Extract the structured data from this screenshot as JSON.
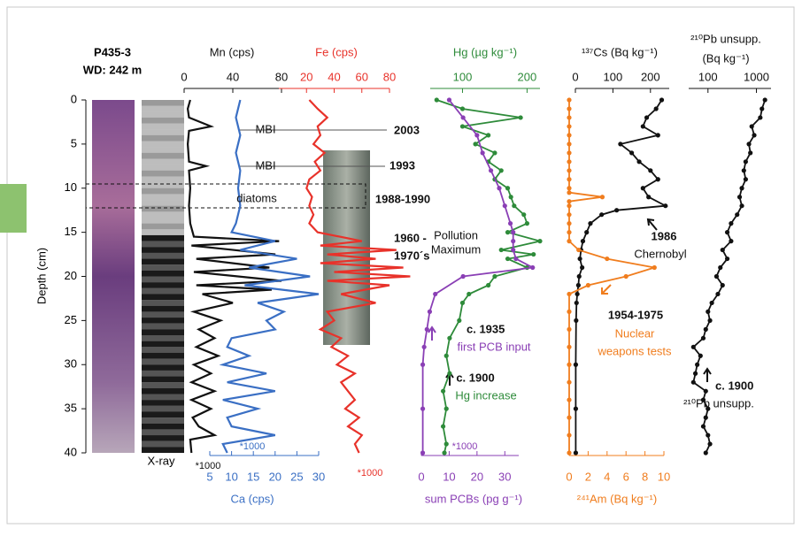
{
  "chart_data": {
    "type": "depth-profile",
    "title": "P435-3",
    "subtitle": "WD: 242 m",
    "core_label": "X-ray",
    "ylabel": "Depth (cm)",
    "ylim": [
      0,
      40
    ],
    "yticks": [
      0,
      5,
      10,
      15,
      20,
      25,
      30,
      35,
      40
    ],
    "profiles": [
      {
        "label": "Mn (cps)",
        "color": "#111111",
        "position": "top",
        "scale": "linear",
        "note": "*1000",
        "markers": false,
        "xlim": [
          0,
          80
        ],
        "xticks": [
          0,
          40,
          80
        ],
        "depth": [
          0,
          1,
          2,
          3,
          3.5,
          5,
          7,
          7.5,
          8,
          10,
          12,
          14,
          15.5,
          16,
          16.5,
          17.5,
          18,
          19,
          19.5,
          20.5,
          21,
          21.5,
          22,
          23,
          24,
          25,
          26,
          27,
          28,
          29,
          30,
          31,
          32,
          33,
          34,
          35,
          36,
          37,
          38,
          38.5,
          40
        ],
        "values": [
          5,
          3,
          4,
          22,
          4,
          3,
          4,
          18,
          4,
          5,
          4,
          5,
          8,
          78,
          6,
          75,
          10,
          70,
          8,
          80,
          10,
          72,
          15,
          40,
          8,
          30,
          12,
          25,
          10,
          28,
          8,
          22,
          6,
          25,
          6,
          22,
          7,
          12,
          25,
          5,
          6
        ]
      },
      {
        "label": "Ca (cps)",
        "color": "#3a6fc4",
        "position": "bottom",
        "scale": "linear",
        "note": "*1000",
        "markers": false,
        "xlim": [
          5,
          30
        ],
        "xticks": [
          5,
          10,
          15,
          20,
          25,
          30
        ],
        "depth": [
          0,
          2,
          4,
          6,
          8,
          10,
          12,
          14,
          15,
          16,
          17,
          18,
          19,
          20,
          21,
          22,
          23,
          24,
          25,
          26,
          27,
          28,
          29,
          30,
          31,
          32,
          33,
          34,
          35,
          36,
          37,
          38,
          39,
          40
        ],
        "values": [
          12,
          11,
          12,
          11,
          12,
          11.5,
          12,
          11,
          10,
          20,
          12,
          25,
          14,
          28,
          13,
          30,
          16,
          22,
          18,
          20,
          10,
          9,
          14,
          8,
          18,
          9,
          20,
          8,
          16,
          9,
          10,
          20,
          8,
          9
        ]
      },
      {
        "label": "Fe (cps)",
        "color": "#e8322a",
        "position": "top",
        "scale": "linear",
        "note": "*1000",
        "markers": false,
        "xlim": [
          0,
          80
        ],
        "xticks": [
          20,
          40,
          60,
          80
        ],
        "depth": [
          0,
          1,
          2,
          3,
          4,
          5,
          6,
          7,
          8,
          9,
          10,
          11,
          12,
          13,
          14,
          15,
          16,
          16.5,
          17,
          17.5,
          18,
          18.5,
          19,
          19.5,
          20,
          20.5,
          21,
          22,
          23,
          24,
          25,
          26,
          27,
          28,
          29,
          30,
          31,
          32,
          33,
          34,
          35,
          36,
          37,
          38,
          39,
          40
        ],
        "values": [
          22,
          28,
          35,
          28,
          30,
          25,
          33,
          26,
          30,
          22,
          20,
          24,
          22,
          25,
          22,
          28,
          60,
          30,
          85,
          35,
          70,
          30,
          90,
          40,
          95,
          35,
          80,
          45,
          70,
          35,
          40,
          30,
          45,
          38,
          50,
          42,
          55,
          45,
          50,
          55,
          48,
          58,
          50,
          60,
          55,
          58
        ]
      },
      {
        "label": "Hg (µg kg⁻¹)",
        "color": "#2e8b3a",
        "position": "top",
        "scale": "linear",
        "markers": true,
        "xlim": [
          50,
          220
        ],
        "xticks": [
          100,
          200
        ],
        "depth": [
          0,
          1,
          2,
          3,
          4,
          5,
          6,
          7,
          8,
          9,
          10,
          11,
          12,
          13,
          14,
          15,
          16,
          17,
          17.5,
          18,
          19,
          20,
          21,
          22,
          23,
          25,
          27,
          29,
          31,
          33,
          35,
          37,
          39,
          40
        ],
        "values": [
          60,
          100,
          190,
          100,
          140,
          120,
          150,
          140,
          160,
          150,
          170,
          175,
          180,
          195,
          200,
          170,
          220,
          160,
          210,
          170,
          200,
          150,
          140,
          110,
          100,
          95,
          80,
          75,
          80,
          70,
          75,
          70,
          75,
          72
        ]
      },
      {
        "label": "sum PCBs (pg g⁻¹)",
        "color": "#8a3fb5",
        "position": "bottom",
        "scale": "linear",
        "note": "*1000",
        "markers": true,
        "xlim": [
          0,
          35
        ],
        "xticks": [
          0,
          10,
          20,
          30
        ],
        "depth": [
          0,
          2,
          4,
          6,
          8,
          10,
          12,
          14,
          15,
          16,
          17,
          18,
          19,
          20,
          22,
          24,
          26,
          28,
          30,
          35,
          40
        ],
        "values": [
          10,
          15,
          20,
          22,
          25,
          28,
          30,
          32,
          33,
          33,
          33,
          34,
          40,
          15,
          5,
          3,
          2,
          1,
          0.5,
          0.5,
          0.5
        ]
      },
      {
        "label": "¹³⁷Cs (Bq kg⁻¹)",
        "color": "#111111",
        "position": "top",
        "scale": "linear",
        "markers": true,
        "xlim": [
          0,
          250
        ],
        "xticks": [
          0,
          100,
          200
        ],
        "depth": [
          0,
          1,
          2,
          3,
          4,
          5,
          6,
          7,
          8,
          9,
          10,
          11,
          12,
          12.5,
          13,
          14,
          15,
          16,
          17,
          18,
          19,
          20,
          21,
          22,
          23,
          25,
          30,
          35,
          40
        ],
        "values": [
          230,
          215,
          190,
          180,
          220,
          120,
          150,
          170,
          200,
          220,
          180,
          195,
          240,
          110,
          70,
          40,
          30,
          20,
          15,
          12,
          18,
          10,
          8,
          5,
          3,
          2,
          1,
          1,
          1
        ]
      },
      {
        "label": "²⁴¹Am (Bq kg⁻¹)",
        "color": "#f07d1e",
        "position": "bottom",
        "scale": "linear",
        "markers": true,
        "xlim": [
          0,
          10
        ],
        "xticks": [
          0,
          2,
          4,
          6,
          8,
          10
        ],
        "depth": [
          0,
          1,
          2,
          3,
          4,
          5,
          6,
          7,
          8,
          9,
          10,
          10.5,
          11,
          11.5,
          12,
          13,
          14,
          15,
          16,
          17,
          18,
          19,
          20,
          21,
          22,
          24,
          26,
          28,
          30,
          32,
          34,
          36,
          38,
          40
        ],
        "values": [
          0,
          0,
          0,
          0,
          0,
          0,
          0,
          0,
          0,
          0,
          0,
          0,
          3.5,
          0,
          0,
          0,
          0,
          0,
          0,
          1,
          4,
          9,
          6,
          2,
          0,
          0,
          0,
          0,
          0,
          0,
          0,
          0,
          0,
          0
        ]
      },
      {
        "label": "²¹⁰Pb unsupp.",
        "label2": "(Bq kg⁻¹)",
        "color": "#111111",
        "position": "top",
        "scale": "log",
        "markers": true,
        "xlim": [
          40,
          2000
        ],
        "xticks": [
          100,
          1000
        ],
        "depth": [
          0,
          1,
          2,
          3,
          4,
          5,
          6,
          7,
          8,
          9,
          10,
          11,
          12,
          13,
          14,
          15,
          16,
          17,
          18,
          19,
          20,
          21,
          22,
          23,
          24,
          25,
          26,
          27,
          28,
          29,
          30,
          31,
          32,
          33,
          34,
          35,
          36,
          37,
          38,
          39,
          40
        ],
        "values": [
          1500,
          1300,
          1200,
          800,
          900,
          700,
          750,
          600,
          550,
          600,
          500,
          450,
          500,
          400,
          300,
          250,
          300,
          200,
          250,
          180,
          150,
          200,
          160,
          120,
          100,
          110,
          90,
          80,
          50,
          70,
          60,
          55,
          50,
          90,
          80,
          100,
          90,
          80,
          100,
          110,
          90
        ]
      }
    ],
    "annotations": [
      {
        "text": "MBI",
        "color": "#111111"
      },
      {
        "text": "MBI",
        "color": "#111111"
      },
      {
        "text": "2003",
        "color": "#111111"
      },
      {
        "text": "1993",
        "color": "#111111"
      },
      {
        "text": "diatoms",
        "color": "#111111"
      },
      {
        "text": "1988-1990",
        "color": "#111111"
      },
      {
        "text": "1960 -",
        "color": "#111111"
      },
      {
        "text": "1970´s",
        "color": "#111111"
      },
      {
        "text": "Pollution",
        "color": "#111111"
      },
      {
        "text": "Maximum",
        "color": "#111111"
      },
      {
        "text": "c. 1935",
        "color": "#111111"
      },
      {
        "text": "first PCB input",
        "color": "#8a3fb5"
      },
      {
        "text": "c. 1900",
        "color": "#111111"
      },
      {
        "text": "Hg increase",
        "color": "#2e8b3a"
      },
      {
        "text": "1986",
        "color": "#111111"
      },
      {
        "text": "Chernobyl",
        "color": "#111111"
      },
      {
        "text": "1954-1975",
        "color": "#111111"
      },
      {
        "text": "Nuclear",
        "color": "#f07d1e"
      },
      {
        "text": "weapons tests",
        "color": "#f07d1e"
      },
      {
        "text": "c. 1900",
        "color": "#111111"
      },
      {
        "text": "²¹⁰Pb unsupp.",
        "color": "#111111"
      }
    ]
  }
}
